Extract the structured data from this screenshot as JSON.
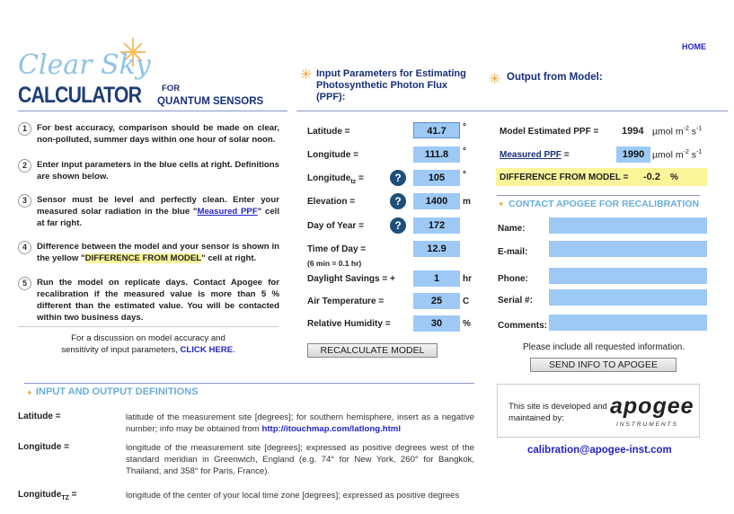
{
  "nav": {
    "home": "HOME"
  },
  "logo": {
    "script": "Clear Sky",
    "word": "CALCULATOR",
    "for": "FOR",
    "subtitle": "QUANTUM SENSORS"
  },
  "headers": {
    "input": "Input Parameters for Estimating Photosynthetic Photon Flux (PPF):",
    "output": "Output from Model:"
  },
  "steps": [
    {
      "n": "1",
      "text": "For best accuracy, comparison should be made on clear, non-polluted, summer days within one hour of solar noon."
    },
    {
      "n": "2",
      "text": "Enter input parameters in the blue cells at right. Definitions are shown below."
    },
    {
      "n": "3",
      "pre": "Sensor must be level and perfectly clean. Enter your measured solar radiation in the blue \"",
      "link": "Measured PPF",
      "post": "\" cell at far right."
    },
    {
      "n": "4",
      "pre": "Difference between the model and your sensor is shown in the yellow \"",
      "hl": "DIFFERENCE FROM MODEL",
      "post": "\" cell at right."
    },
    {
      "n": "5",
      "text": "Run the model on replicate days. Contact Apogee for recalibration if the measured value is more than 5 % different than the estimated value. You will be contacted within two business days."
    }
  ],
  "discussion": {
    "pre": "For a discussion on model accuracy and sensitivity of input parameters, ",
    "link": "CLICK HERE",
    "post": "."
  },
  "inputs": [
    {
      "label": "Latitude =",
      "value": "41.7",
      "unit": "°"
    },
    {
      "label": "Longitude =",
      "value": "111.8",
      "unit": "°"
    },
    {
      "label": "Longitude",
      "sub": "tz",
      "label_end": " =",
      "value": "105",
      "unit": "°",
      "help": "?"
    },
    {
      "label": "Elevation =",
      "value": "1400",
      "unit": "m",
      "help": "?"
    },
    {
      "label": "Day of Year =",
      "value": "172",
      "unit": "",
      "help": "?"
    },
    {
      "label": "Time of Day =",
      "note": "(6 min = 0.1 hr)",
      "value": "12.9",
      "unit": ""
    },
    {
      "label": "Daylight Savings =  +",
      "value": "1",
      "unit": "hr"
    },
    {
      "label": "Air Temperature =",
      "value": "25",
      "unit": "C"
    },
    {
      "label": "Relative Humidity =",
      "value": "30",
      "unit": "%"
    }
  ],
  "recalc": "RECALCULATE MODEL",
  "output": {
    "model_label": "Model Estimated PPF =",
    "model_value": "1994",
    "measured_label": "Measured PPF",
    "measured_eq": " =",
    "measured_value": "1990",
    "unit": "µmol m",
    "unit_exp1": "-2",
    "unit_s": " s",
    "unit_exp2": "-1",
    "diff_label": "DIFFERENCE FROM MODEL =",
    "diff_value": "-0.2",
    "diff_unit": "%"
  },
  "contact": {
    "title": "CONTACT APOGEE FOR RECALIBRATION",
    "fields": [
      "Name:",
      "E-mail:",
      "Phone:",
      "Serial #:",
      "Comments:"
    ],
    "note": "Please include all requested information.",
    "send": "SEND INFO TO APOGEE"
  },
  "dev": {
    "text": "This site is developed and maintained by:",
    "brand": "apogee",
    "brand_sub": "INSTRUMENTS",
    "email": "calibration@apogee-inst.com"
  },
  "definitions": {
    "title": "INPUT AND OUTPUT DEFINITIONS",
    "items": [
      {
        "term": "Latitude =",
        "desc": "latitude of the measurement site [degrees]; for southern hemisphere, insert as a negative number; info may be obtained from ",
        "link": "http://itouchmap.com/latlong.html"
      },
      {
        "term": "Longitude =",
        "desc": "longitude of the measurement site [degrees]; expressed as positive degrees west of the standard meridian in Greenwich, England (e.g. 74° for New York, 260° for Bangkok, Thailand, and 358° for Paris, France)."
      },
      {
        "term": "Longitude",
        "sub": "TZ",
        "term_end": " =",
        "desc": "longitude of the center of your local time zone [degrees]; expressed as positive degrees"
      }
    ]
  },
  "colors": {
    "input_blue": "#9ec9f5",
    "highlight_yellow": "#fbf59a",
    "navy": "#1a2f7a",
    "section_blue": "#6aaed8",
    "help_icon": "#1d4f79"
  }
}
